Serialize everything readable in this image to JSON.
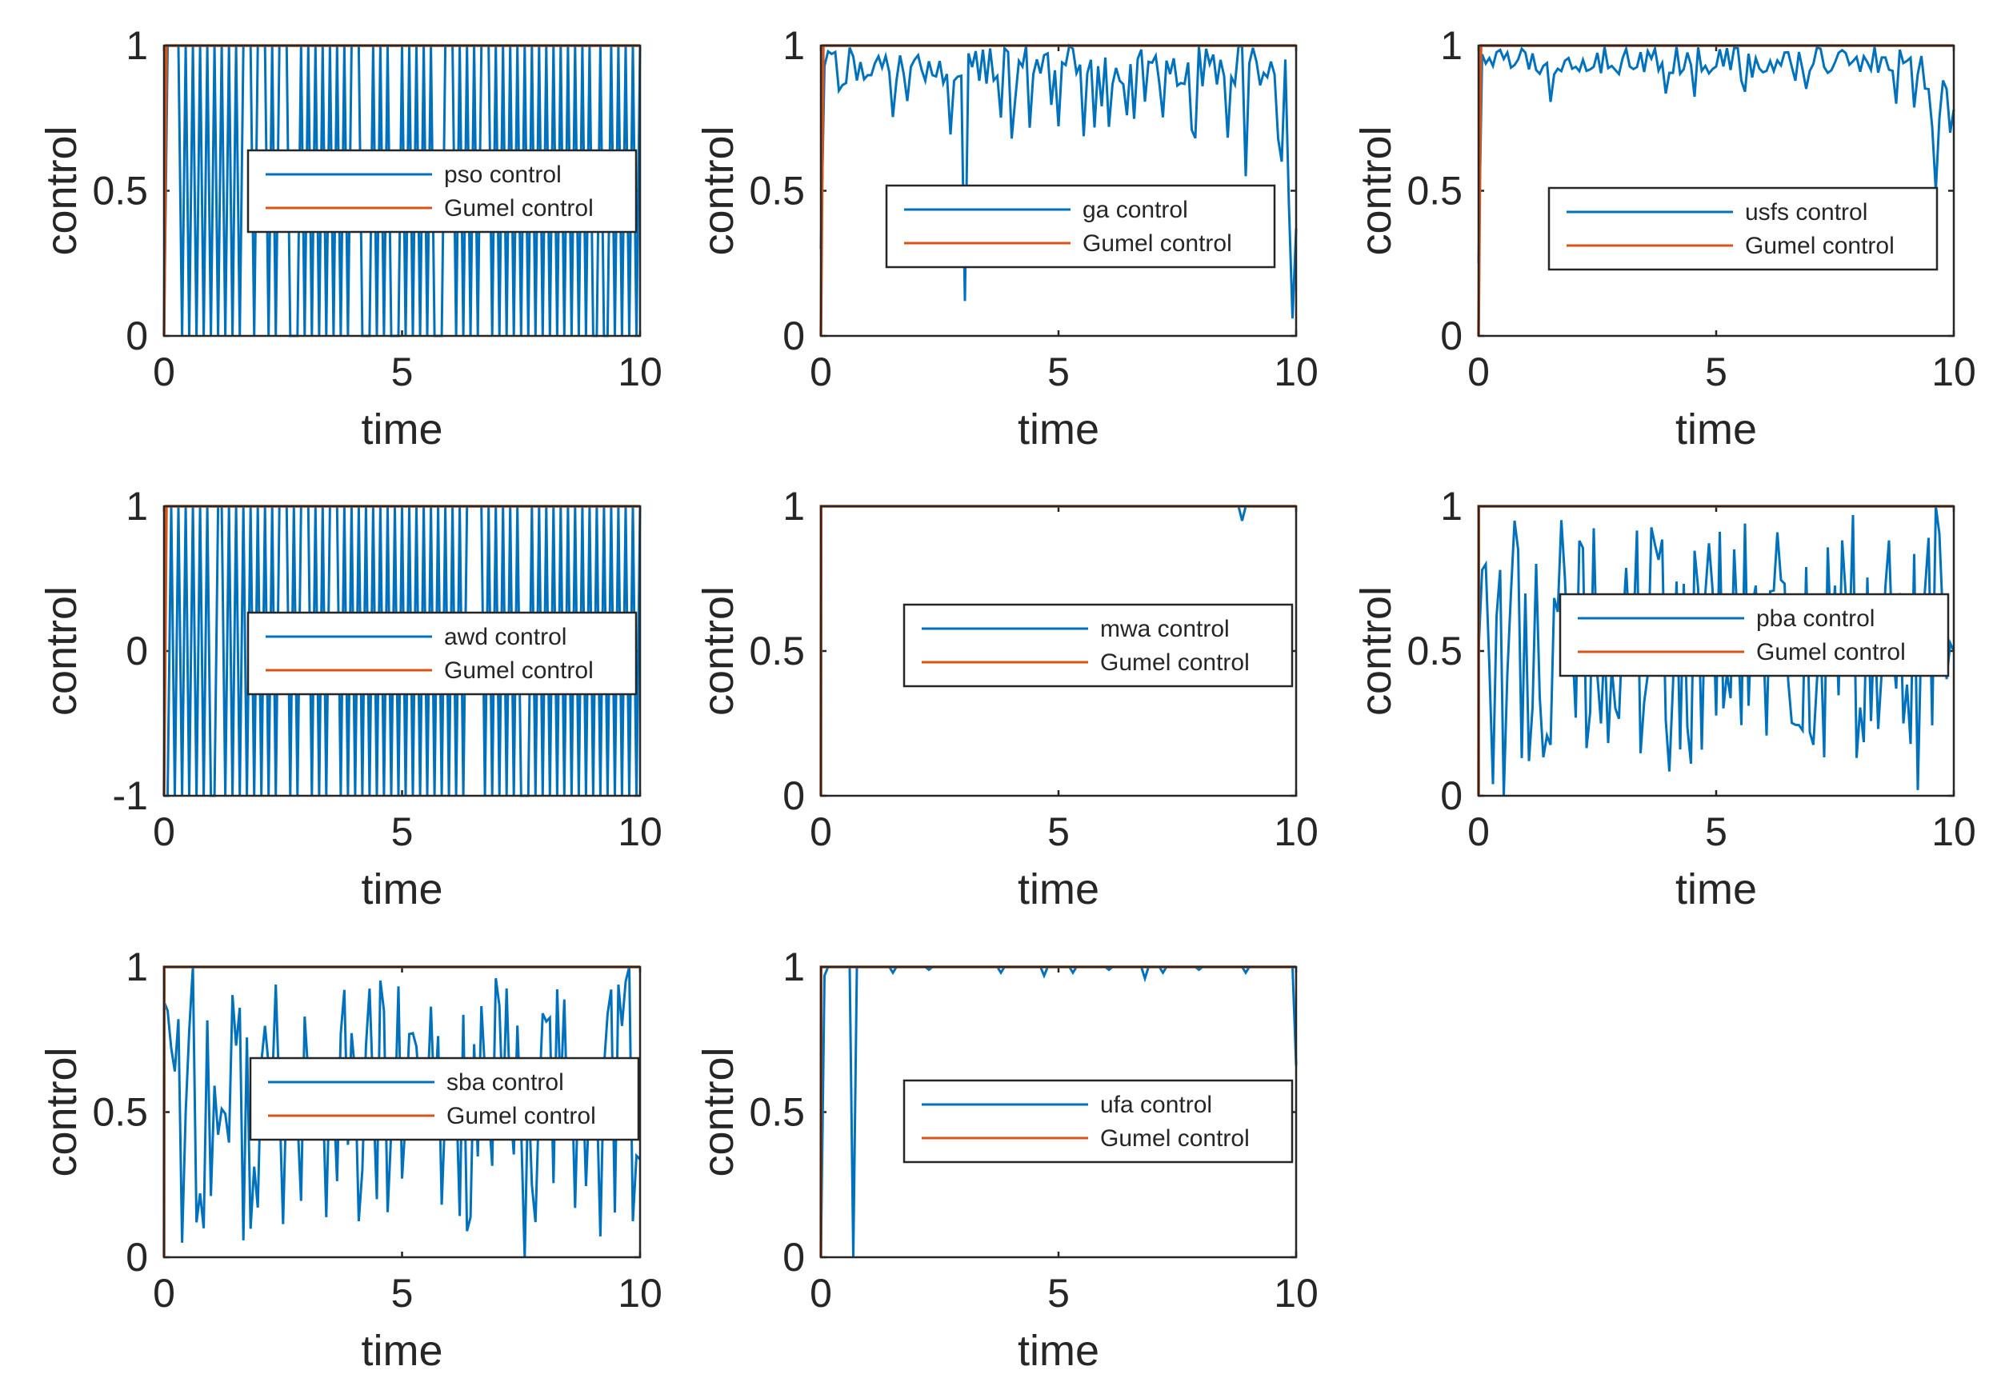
{
  "colors": {
    "optimizer": "#0072BD",
    "gumel": "#D95319",
    "axis": "#262626"
  },
  "chart_data": [
    {
      "type": "line",
      "title": "",
      "xlabel": "time",
      "ylabel": "control",
      "xlim": [
        0,
        10
      ],
      "ylim": [
        0,
        1
      ],
      "xticks": [
        0,
        5,
        10
      ],
      "xtick_labels": [
        "0",
        "5",
        "10"
      ],
      "yticks": [
        0,
        0.5,
        1
      ],
      "ytick_labels": [
        "0",
        "0.5",
        "1"
      ],
      "legend_position": "center-right",
      "series": [
        {
          "name": "pso control",
          "pattern": "bangbang",
          "seed": 11,
          "x": [],
          "y": []
        },
        {
          "name": "Gumel control",
          "x": [
            0,
            0.05,
            10
          ],
          "y": [
            0,
            1,
            1
          ]
        }
      ]
    },
    {
      "type": "line",
      "title": "",
      "xlabel": "time",
      "ylabel": "control",
      "xlim": [
        0,
        10
      ],
      "ylim": [
        0,
        1
      ],
      "xticks": [
        0,
        5,
        10
      ],
      "xtick_labels": [
        "0",
        "5",
        "10"
      ],
      "yticks": [
        0,
        0.5,
        1
      ],
      "ytick_labels": [
        "0",
        "0.5",
        "1"
      ],
      "legend_position": "center-right",
      "series": [
        {
          "name": "ga control",
          "pattern": "high",
          "seed": 22,
          "x": [],
          "y": [],
          "overrides": [
            [
              0,
              0.3
            ],
            [
              1,
              0.93
            ],
            [
              2,
              0.98
            ],
            [
              40,
              0.12
            ],
            [
              80,
              0.72
            ],
            [
              118,
              0.55
            ],
            [
              127,
              0.68
            ],
            [
              128,
              0.6
            ],
            [
              130,
              0.45
            ],
            [
              131,
              0.06
            ],
            [
              132,
              0.37
            ]
          ]
        },
        {
          "name": "Gumel control",
          "x": [
            0,
            0.05,
            10
          ],
          "y": [
            0,
            1,
            1
          ]
        }
      ]
    },
    {
      "type": "line",
      "title": "",
      "xlabel": "time",
      "ylabel": "control",
      "xlim": [
        0,
        10
      ],
      "ylim": [
        0,
        1
      ],
      "xticks": [
        0,
        5,
        10
      ],
      "xtick_labels": [
        "0",
        "5",
        "10"
      ],
      "yticks": [
        0,
        0.5,
        1
      ],
      "ytick_labels": [
        "0",
        "0.5",
        "1"
      ],
      "legend_position": "center-right",
      "series": [
        {
          "name": "usfs control",
          "pattern": "high2",
          "seed": 33,
          "x": [],
          "y": [],
          "overrides": [
            [
              0,
              0.25
            ],
            [
              1,
              0.97
            ],
            [
              125,
              0.85
            ],
            [
              126,
              0.72
            ],
            [
              127,
              0.5
            ],
            [
              128,
              0.75
            ],
            [
              129,
              0.88
            ],
            [
              130,
              0.85
            ],
            [
              131,
              0.7
            ],
            [
              132,
              0.78
            ]
          ]
        },
        {
          "name": "Gumel control",
          "x": [
            0,
            0.05,
            10
          ],
          "y": [
            0,
            1,
            1
          ]
        }
      ]
    },
    {
      "type": "line",
      "title": "",
      "xlabel": "time",
      "ylabel": "control",
      "xlim": [
        0,
        10
      ],
      "ylim": [
        -1,
        1
      ],
      "xticks": [
        0,
        5,
        10
      ],
      "xtick_labels": [
        "0",
        "5",
        "10"
      ],
      "yticks": [
        -1,
        0,
        1
      ],
      "ytick_labels": [
        "-1",
        "0",
        "1"
      ],
      "legend_position": "center-right",
      "series": [
        {
          "name": "awd control",
          "pattern": "bangbang_pm",
          "seed": 44,
          "x": [],
          "y": []
        },
        {
          "name": "Gumel control",
          "x": [
            0,
            0.05,
            10
          ],
          "y": [
            -1,
            1,
            1
          ]
        }
      ]
    },
    {
      "type": "line",
      "title": "",
      "xlabel": "time",
      "ylabel": "control",
      "xlim": [
        0,
        10
      ],
      "ylim": [
        0,
        1
      ],
      "xticks": [
        0,
        5,
        10
      ],
      "xtick_labels": [
        "0",
        "5",
        "10"
      ],
      "yticks": [
        0,
        0.5,
        1
      ],
      "ytick_labels": [
        "0",
        "0.5",
        "1"
      ],
      "legend_position": "center-right",
      "series": [
        {
          "name": "mwa control",
          "pattern": "flat",
          "seed": 55,
          "x": [],
          "y": [],
          "overrides": [
            [
              117,
              0.95
            ]
          ]
        },
        {
          "name": "Gumel control",
          "x": [
            0,
            0.005,
            10
          ],
          "y": [
            0,
            1,
            1
          ]
        }
      ]
    },
    {
      "type": "line",
      "title": "",
      "xlabel": "time",
      "ylabel": "control",
      "xlim": [
        0,
        10
      ],
      "ylim": [
        0,
        1
      ],
      "xticks": [
        0,
        5,
        10
      ],
      "xtick_labels": [
        "0",
        "5",
        "10"
      ],
      "yticks": [
        0,
        0.5,
        1
      ],
      "ytick_labels": [
        "0",
        "0.5",
        "1"
      ],
      "legend_position": "center-right",
      "series": [
        {
          "name": "pba control",
          "pattern": "noisy",
          "seed": 66,
          "x": [],
          "y": [],
          "overrides": [
            [
              0,
              0.5
            ],
            [
              1,
              0.78
            ],
            [
              2,
              0.8
            ],
            [
              3,
              0.45
            ],
            [
              4,
              0.04
            ],
            [
              5,
              0.62
            ],
            [
              6,
              0.78
            ],
            [
              7,
              0.0
            ],
            [
              8,
              0.42
            ],
            [
              9,
              0.7
            ],
            [
              10,
              0.95
            ],
            [
              11,
              0.85
            ],
            [
              118,
              0.25
            ],
            [
              122,
              0.02
            ],
            [
              127,
              1.0
            ],
            [
              132,
              0.5
            ]
          ]
        },
        {
          "name": "Gumel control",
          "x": [
            0,
            0.005,
            10
          ],
          "y": [
            0,
            1,
            1
          ]
        }
      ]
    },
    {
      "type": "line",
      "title": "",
      "xlabel": "time",
      "ylabel": "control",
      "xlim": [
        0,
        10
      ],
      "ylim": [
        0,
        1
      ],
      "xticks": [
        0,
        5,
        10
      ],
      "xtick_labels": [
        "0",
        "5",
        "10"
      ],
      "yticks": [
        0,
        0.5,
        1
      ],
      "ytick_labels": [
        "0",
        "0.5",
        "1"
      ],
      "legend_position": "center-right",
      "series": [
        {
          "name": "sba control",
          "pattern": "noisy",
          "seed": 77,
          "x": [],
          "y": [],
          "overrides": [
            [
              0,
              0.88
            ],
            [
              1,
              0.85
            ],
            [
              2,
              0.72
            ],
            [
              3,
              0.64
            ],
            [
              4,
              0.82
            ],
            [
              5,
              0.05
            ],
            [
              6,
              0.5
            ],
            [
              7,
              0.78
            ],
            [
              8,
              1.0
            ],
            [
              9,
              0.12
            ],
            [
              10,
              0.22
            ],
            [
              11,
              0.1
            ],
            [
              100,
              0.0
            ],
            [
              128,
              0.95
            ],
            [
              129,
              1.0
            ],
            [
              131,
              0.35
            ]
          ]
        },
        {
          "name": "Gumel control",
          "x": [
            0,
            0.005,
            10
          ],
          "y": [
            0,
            1,
            1
          ]
        }
      ]
    },
    {
      "type": "line",
      "title": "",
      "xlabel": "time",
      "ylabel": "control",
      "xlim": [
        0,
        10
      ],
      "ylim": [
        0,
        1
      ],
      "xticks": [
        0,
        5,
        10
      ],
      "xtick_labels": [
        "0",
        "5",
        "10"
      ],
      "yticks": [
        0,
        0.5,
        1
      ],
      "ytick_labels": [
        "0",
        "0.5",
        "1"
      ],
      "legend_position": "center-right",
      "series": [
        {
          "name": "ufa control",
          "pattern": "flat",
          "seed": 88,
          "x": [],
          "y": [],
          "overrides": [
            [
              0,
              0.0
            ],
            [
              1,
              0.97
            ],
            [
              8,
              1.0
            ],
            [
              9,
              0.0
            ],
            [
              10,
              1.0
            ],
            [
              20,
              0.98
            ],
            [
              30,
              0.99
            ],
            [
              50,
              0.98
            ],
            [
              62,
              0.97
            ],
            [
              70,
              0.98
            ],
            [
              80,
              0.99
            ],
            [
              90,
              0.96
            ],
            [
              95,
              0.98
            ],
            [
              105,
              0.99
            ],
            [
              118,
              0.98
            ],
            [
              131,
              1.0
            ],
            [
              132,
              0.66
            ]
          ]
        },
        {
          "name": "Gumel control",
          "x": [
            0,
            0.005,
            10
          ],
          "y": [
            0,
            1,
            1
          ]
        }
      ]
    }
  ]
}
